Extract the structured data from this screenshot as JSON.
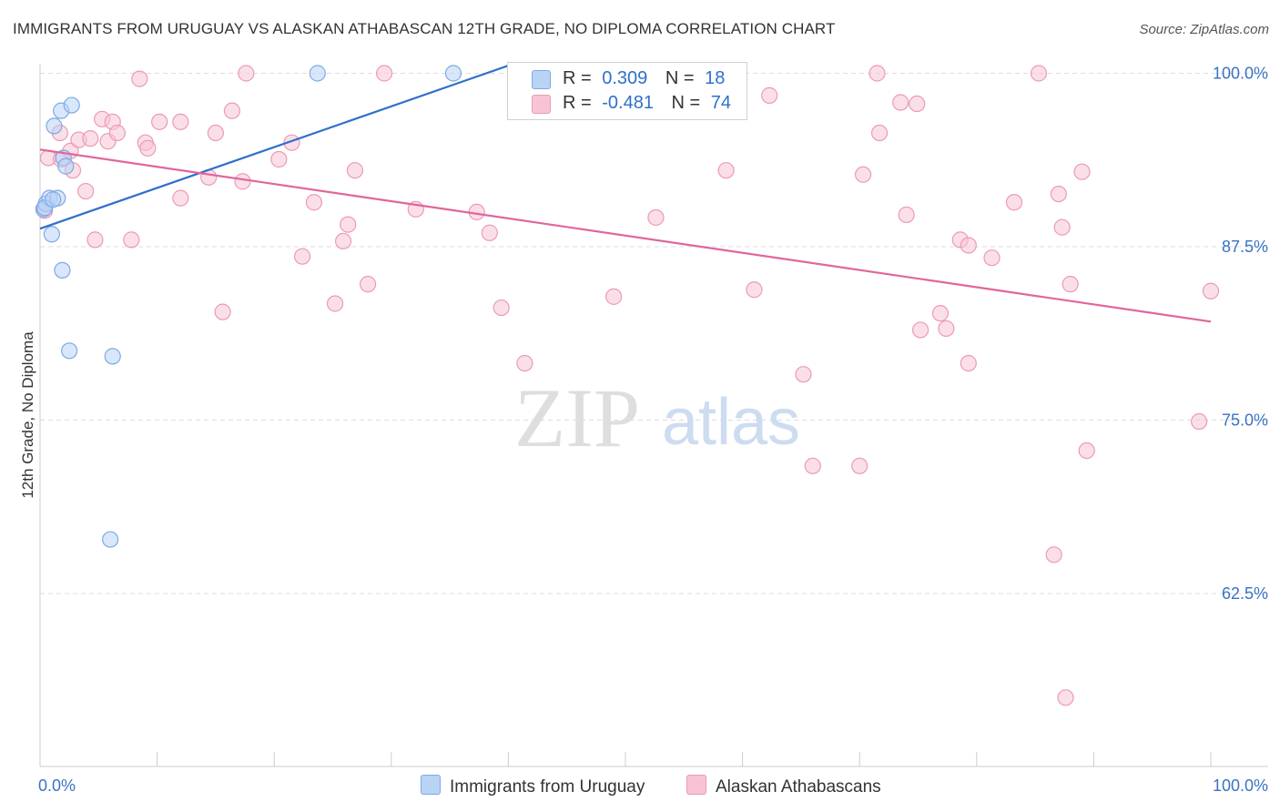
{
  "title": "IMMIGRANTS FROM URUGUAY VS ALASKAN ATHABASCAN 12TH GRADE, NO DIPLOMA CORRELATION CHART",
  "source": "Source: ZipAtlas.com",
  "watermark": {
    "zip": "ZIP",
    "atlas": "atlas"
  },
  "colors": {
    "blue": "#2f6fcb",
    "blue_fill": "#b8d3f5",
    "pink": "#e0669a",
    "pink_fill": "#f8c4d5",
    "axis_text": "#3a72c4",
    "grid": "#dddddd"
  },
  "legend": {
    "r_label": "R =",
    "n_label": "N =",
    "series1": {
      "r": "0.309",
      "n": "18"
    },
    "series2": {
      "r": "-0.481",
      "n": "74"
    }
  },
  "chart_data": {
    "type": "scatter",
    "title": "IMMIGRANTS FROM URUGUAY VS ALASKAN ATHABASCAN 12TH GRADE, NO DIPLOMA CORRELATION CHART",
    "xlabel": "",
    "ylabel": "12th Grade, No Diploma",
    "xlim": [
      0,
      100
    ],
    "ylim": [
      51.5,
      102
    ],
    "x_tick_labels": [
      "0.0%",
      "100.0%"
    ],
    "y_ticks": [
      62.5,
      75.0,
      87.5,
      100.0
    ],
    "y_tick_labels": [
      "62.5%",
      "75.0%",
      "87.5%",
      "100.0%"
    ],
    "grid": true,
    "legend_position": "top-center",
    "series": [
      {
        "name": "Immigrants from Uruguay",
        "color": "#2f6fcb",
        "r": 0.309,
        "n": 18,
        "trend": {
          "x": [
            0,
            40.5
          ],
          "y": [
            88.8,
            100.7
          ]
        },
        "points": [
          [
            0.3,
            90.2
          ],
          [
            0.5,
            90.6
          ],
          [
            0.8,
            91.0
          ],
          [
            1.0,
            88.4
          ],
          [
            1.5,
            91.0
          ],
          [
            1.2,
            96.2
          ],
          [
            1.8,
            97.3
          ],
          [
            2.0,
            93.9
          ],
          [
            2.2,
            93.3
          ],
          [
            2.7,
            97.7
          ],
          [
            1.9,
            85.8
          ],
          [
            2.5,
            80.0
          ],
          [
            6.2,
            79.6
          ],
          [
            6.0,
            66.4
          ],
          [
            23.7,
            100.0
          ],
          [
            35.3,
            100.0
          ],
          [
            0.4,
            90.3
          ],
          [
            1.1,
            90.9
          ]
        ]
      },
      {
        "name": "Alaskan Athabascans",
        "color": "#e0669a",
        "r": -0.481,
        "n": 74,
        "trend": {
          "x": [
            0,
            100
          ],
          "y": [
            94.5,
            82.1
          ]
        },
        "points": [
          [
            0.4,
            90.1
          ],
          [
            0.7,
            93.9
          ],
          [
            1.7,
            95.7
          ],
          [
            1.8,
            93.8
          ],
          [
            2.6,
            94.4
          ],
          [
            2.8,
            93.0
          ],
          [
            3.3,
            95.2
          ],
          [
            3.9,
            91.5
          ],
          [
            4.3,
            95.3
          ],
          [
            4.7,
            88.0
          ],
          [
            5.3,
            96.7
          ],
          [
            5.8,
            95.1
          ],
          [
            6.2,
            96.5
          ],
          [
            6.6,
            95.7
          ],
          [
            7.8,
            88.0
          ],
          [
            8.5,
            99.6
          ],
          [
            9.0,
            95.0
          ],
          [
            9.2,
            94.6
          ],
          [
            10.2,
            96.5
          ],
          [
            12.0,
            96.5
          ],
          [
            12.0,
            91.0
          ],
          [
            14.4,
            92.5
          ],
          [
            15.0,
            95.7
          ],
          [
            15.6,
            82.8
          ],
          [
            16.4,
            97.3
          ],
          [
            17.3,
            92.2
          ],
          [
            17.6,
            100.0
          ],
          [
            20.4,
            93.8
          ],
          [
            21.5,
            95.0
          ],
          [
            22.4,
            86.8
          ],
          [
            23.4,
            90.7
          ],
          [
            25.2,
            83.4
          ],
          [
            25.9,
            87.9
          ],
          [
            26.3,
            89.1
          ],
          [
            26.9,
            93.0
          ],
          [
            28.0,
            84.8
          ],
          [
            29.4,
            100.0
          ],
          [
            32.1,
            90.2
          ],
          [
            37.3,
            90.0
          ],
          [
            38.4,
            88.5
          ],
          [
            39.4,
            83.1
          ],
          [
            41.4,
            79.1
          ],
          [
            49.0,
            83.9
          ],
          [
            52.6,
            89.6
          ],
          [
            58.6,
            93.0
          ],
          [
            61.0,
            84.4
          ],
          [
            62.3,
            98.4
          ],
          [
            65.2,
            78.3
          ],
          [
            66.0,
            71.7
          ],
          [
            70.0,
            71.7
          ],
          [
            70.3,
            92.7
          ],
          [
            71.5,
            100.0
          ],
          [
            71.7,
            95.7
          ],
          [
            73.5,
            97.9
          ],
          [
            74.0,
            89.8
          ],
          [
            74.9,
            97.8
          ],
          [
            75.2,
            81.5
          ],
          [
            76.9,
            82.7
          ],
          [
            77.4,
            81.6
          ],
          [
            78.6,
            88.0
          ],
          [
            79.3,
            87.6
          ],
          [
            79.3,
            79.1
          ],
          [
            81.3,
            86.7
          ],
          [
            83.2,
            90.7
          ],
          [
            85.3,
            100.0
          ],
          [
            86.6,
            65.3
          ],
          [
            87.0,
            91.3
          ],
          [
            87.3,
            88.9
          ],
          [
            87.6,
            55.0
          ],
          [
            88.0,
            84.8
          ],
          [
            89.0,
            92.9
          ],
          [
            89.4,
            72.8
          ],
          [
            99.0,
            74.9
          ],
          [
            100.0,
            84.3
          ]
        ]
      }
    ]
  }
}
